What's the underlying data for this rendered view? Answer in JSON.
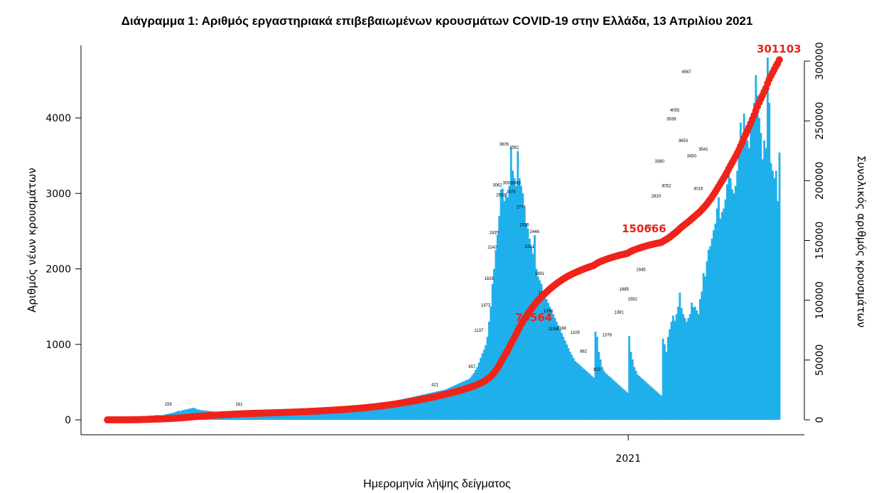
{
  "colors": {
    "bars": "#1fb0eb",
    "cumulative": "#f0231a",
    "axis": "#000000"
  },
  "chart_data": {
    "type": "bar",
    "title": "Διάγραμμα 1: Αριθμός εργαστηριακά επιβεβαιωμένων κρουσμάτων COVID-19 στην Ελλάδα, 13 Απριλίου 2021",
    "xlabel": "Ημερομηνία λήψης δείγματος",
    "ylabel": "Αριθμός νέων κρουσμάτων",
    "y2label": "Συνολικός αριθμός κρουσμάτων",
    "x_ticks": [
      {
        "label": "2021",
        "index": 309
      }
    ],
    "ylim": [
      0,
      4900
    ],
    "yticks": [
      "0",
      "1000",
      "2000",
      "3000",
      "4000"
    ],
    "y2lim": [
      0,
      306000
    ],
    "y2ticks": [
      "0",
      "50000",
      "100000",
      "150000",
      "200000",
      "250000",
      "300000"
    ],
    "cumulative_annotations": [
      "76564",
      "150666",
      "301103"
    ],
    "series": [
      {
        "name": "new_cases",
        "kind": "bar",
        "values": [
          0,
          0,
          0,
          1,
          1,
          2,
          3,
          2,
          5,
          6,
          9,
          12,
          18,
          15,
          20,
          22,
          25,
          30,
          35,
          38,
          42,
          45,
          48,
          50,
          52,
          55,
          58,
          55,
          60,
          62,
          65,
          60,
          58,
          62,
          70,
          75,
          80,
          85,
          90,
          95,
          100,
          110,
          120,
          115,
          125,
          130,
          135,
          140,
          145,
          150,
          155,
          160,
          150,
          140,
          135,
          130,
          128,
          125,
          122,
          120,
          118,
          115,
          112,
          110,
          108,
          105,
          102,
          100,
          98,
          95,
          92,
          90,
          88,
          85,
          82,
          80,
          78,
          76,
          74,
          72,
          70,
          68,
          66,
          64,
          62,
          60,
          58,
          56,
          55,
          54,
          53,
          52,
          51,
          50,
          50,
          50,
          50,
          51,
          52,
          53,
          54,
          55,
          56,
          57,
          58,
          59,
          60,
          61,
          62,
          63,
          64,
          65,
          66,
          67,
          68,
          69,
          70,
          72,
          74,
          76,
          78,
          80,
          82,
          84,
          86,
          88,
          90,
          92,
          94,
          96,
          98,
          100,
          102,
          104,
          106,
          108,
          110,
          112,
          114,
          116,
          118,
          120,
          122,
          124,
          126,
          128,
          130,
          135,
          140,
          145,
          150,
          155,
          160,
          165,
          170,
          175,
          180,
          185,
          190,
          195,
          200,
          205,
          210,
          215,
          220,
          225,
          230,
          235,
          240,
          245,
          250,
          255,
          260,
          265,
          270,
          275,
          280,
          285,
          290,
          295,
          300,
          305,
          310,
          315,
          320,
          325,
          330,
          335,
          340,
          345,
          350,
          355,
          360,
          365,
          370,
          375,
          380,
          385,
          390,
          395,
          400,
          410,
          420,
          430,
          440,
          450,
          460,
          470,
          480,
          490,
          500,
          510,
          520,
          530,
          540,
          560,
          590,
          620,
          660,
          700,
          760,
          820,
          880,
          930,
          990,
          1100,
          1300,
          1500,
          1800,
          2000,
          2250,
          2450,
          2700,
          3050,
          3065,
          2900,
          3000,
          2950,
          3100,
          3605,
          3300,
          3200,
          3100,
          3561,
          3200,
          3100,
          3000,
          2800,
          2600,
          2535,
          2400,
          2300,
          2200,
          2446,
          2000,
          1900,
          1850,
          1800,
          1700,
          1650,
          1600,
          1550,
          1500,
          1450,
          1400,
          1350,
          1300,
          1250,
          1200,
          1150,
          1100,
          1050,
          1000,
          950,
          900,
          860,
          820,
          780,
          760,
          740,
          720,
          700,
          680,
          660,
          640,
          620,
          600,
          580,
          560,
          1168,
          1100,
          900,
          800,
          700,
          650,
          620,
          600,
          580,
          560,
          540,
          520,
          500,
          480,
          460,
          440,
          420,
          400,
          380,
          360,
          1109,
          900,
          800,
          700,
          650,
          600,
          580,
          560,
          540,
          520,
          500,
          480,
          460,
          440,
          420,
          400,
          380,
          360,
          340,
          320,
          1076,
          1000,
          900,
          1100,
          1200,
          1300,
          1381,
          1313,
          1400,
          1500,
          1685,
          1480,
          1400,
          1350,
          1300,
          1348,
          1400,
          1552,
          1493,
          1500,
          1450,
          1400,
          1600,
          1700,
          1945,
          1900,
          2100,
          2255,
          2300,
          2400,
          2512,
          2600,
          2800,
          2948,
          2668,
          2755,
          2800,
          2920,
          3120,
          3380,
          3200,
          3052,
          3000,
          3100,
          3300,
          3500,
          3939,
          3700,
          4055,
          3800,
          3700,
          3600,
          3900,
          4000,
          4200,
          4567,
          4300,
          4000,
          3800,
          3450,
          3700,
          3600,
          4800,
          4200,
          3400,
          3300,
          3200,
          3300,
          2900,
          3541
        ]
      },
      {
        "name": "cumulative",
        "kind": "line",
        "values_from_new_cases": true
      }
    ],
    "bar_labels": [
      {
        "i": 36,
        "v": 159
      },
      {
        "i": 78,
        "v": 161
      },
      {
        "i": 194,
        "v": 421
      },
      {
        "i": 216,
        "v": 657
      },
      {
        "i": 220,
        "v": 1137
      },
      {
        "i": 224,
        "v": 1473
      },
      {
        "i": 226,
        "v": 1828
      },
      {
        "i": 228,
        "v": 2242
      },
      {
        "i": 229,
        "v": 2435
      },
      {
        "i": 231,
        "v": 3062
      },
      {
        "i": 233,
        "v": 2932
      },
      {
        "i": 235,
        "v": 3605
      },
      {
        "i": 237,
        "v": 3093
      },
      {
        "i": 239,
        "v": 2975
      },
      {
        "i": 241,
        "v": 3561
      },
      {
        "i": 242,
        "v": 3093
      },
      {
        "i": 245,
        "v": 2774
      },
      {
        "i": 247,
        "v": 2535
      },
      {
        "i": 250,
        "v": 2251
      },
      {
        "i": 253,
        "v": 2446
      },
      {
        "i": 256,
        "v": 1891
      },
      {
        "i": 258,
        "v": 1639
      },
      {
        "i": 261,
        "v": 1398
      },
      {
        "i": 264,
        "v": 1156
      },
      {
        "i": 269,
        "v": 1168
      },
      {
        "i": 277,
        "v": 1109
      },
      {
        "i": 282,
        "v": 862
      },
      {
        "i": 290,
        "v": 623
      },
      {
        "i": 296,
        "v": 1076
      },
      {
        "i": 303,
        "v": 1381
      },
      {
        "i": 306,
        "v": 1685
      },
      {
        "i": 311,
        "v": 1552
      },
      {
        "i": 316,
        "v": 1945
      },
      {
        "i": 319,
        "v": 2255
      },
      {
        "i": 321,
        "v": 2512
      },
      {
        "i": 325,
        "v": 2920
      },
      {
        "i": 327,
        "v": 3380
      },
      {
        "i": 331,
        "v": 3052
      },
      {
        "i": 334,
        "v": 3939
      },
      {
        "i": 336,
        "v": 4055
      },
      {
        "i": 341,
        "v": 3653
      },
      {
        "i": 343,
        "v": 4567
      },
      {
        "i": 346,
        "v": 3450
      },
      {
        "i": 350,
        "v": 3016
      },
      {
        "i": 353,
        "v": 3541
      }
    ]
  }
}
